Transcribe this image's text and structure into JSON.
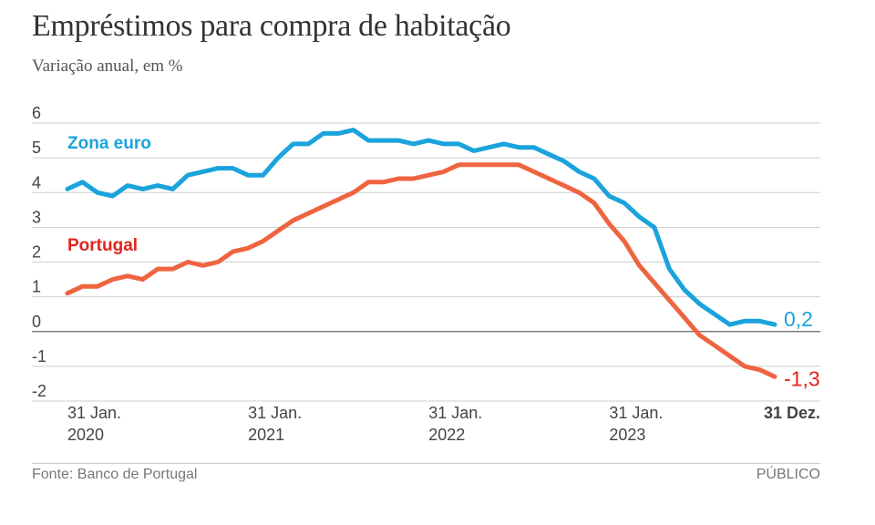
{
  "header": {
    "title": "Empréstimos para compra de habitação",
    "subtitle": "Variação anual, em %"
  },
  "footer": {
    "source": "Fonte: Banco de Portugal",
    "brand": "PÚBLICO"
  },
  "chart_data": {
    "type": "line",
    "title": "Empréstimos para compra de habitação",
    "subtitle": "Variação anual, em %",
    "ylim": [
      -2,
      6
    ],
    "yticks": [
      "6",
      "5",
      "4",
      "3",
      "2",
      "1",
      "0",
      "-1",
      "-2"
    ],
    "ytick_values": [
      6,
      5,
      4,
      3,
      2,
      1,
      0,
      -1,
      -2
    ],
    "grid": true,
    "xticks": [
      {
        "line1": "31 Jan.",
        "line2": "2020",
        "date": "2020-01-31"
      },
      {
        "line1": "31 Jan.",
        "line2": "2021",
        "date": "2021-01-31"
      },
      {
        "line1": "31 Jan.",
        "line2": "2022",
        "date": "2022-01-31"
      },
      {
        "line1": "31 Jan.",
        "line2": "2023",
        "date": "2023-01-31"
      },
      {
        "line1": "31 Dez.",
        "line2": "",
        "date": "2023-12-31"
      }
    ],
    "x": [
      "2020-01",
      "2020-02",
      "2020-03",
      "2020-04",
      "2020-05",
      "2020-06",
      "2020-07",
      "2020-08",
      "2020-09",
      "2020-10",
      "2020-11",
      "2020-12",
      "2021-01",
      "2021-02",
      "2021-03",
      "2021-04",
      "2021-05",
      "2021-06",
      "2021-07",
      "2021-08",
      "2021-09",
      "2021-10",
      "2021-11",
      "2021-12",
      "2022-01",
      "2022-02",
      "2022-03",
      "2022-04",
      "2022-05",
      "2022-06",
      "2022-07",
      "2022-08",
      "2022-09",
      "2022-10",
      "2022-11",
      "2022-12",
      "2023-01",
      "2023-02",
      "2023-03",
      "2023-04",
      "2023-05",
      "2023-06",
      "2023-07",
      "2023-08",
      "2023-09",
      "2023-10",
      "2023-11",
      "2023-12"
    ],
    "series": [
      {
        "name": "Zona euro",
        "color": "#1aa3dc",
        "end_label": "0,2",
        "values": [
          4.1,
          4.3,
          4.0,
          3.9,
          4.2,
          4.1,
          4.2,
          4.1,
          4.5,
          4.6,
          4.7,
          4.7,
          4.5,
          4.5,
          5.0,
          5.4,
          5.4,
          5.7,
          5.7,
          5.8,
          5.5,
          5.5,
          5.5,
          5.4,
          5.5,
          5.4,
          5.4,
          5.2,
          5.3,
          5.4,
          5.3,
          5.3,
          5.1,
          4.9,
          4.6,
          4.4,
          3.9,
          3.7,
          3.3,
          3.0,
          1.8,
          1.2,
          0.8,
          0.5,
          0.2,
          0.3,
          0.3,
          0.2
        ]
      },
      {
        "name": "Portugal",
        "color": "#ef6440",
        "label_color": "#e2231a",
        "end_label": "-1,3",
        "values": [
          1.1,
          1.3,
          1.3,
          1.5,
          1.6,
          1.5,
          1.8,
          1.8,
          2.0,
          1.9,
          2.0,
          2.3,
          2.4,
          2.6,
          2.9,
          3.2,
          3.4,
          3.6,
          3.8,
          4.0,
          4.3,
          4.3,
          4.4,
          4.4,
          4.5,
          4.6,
          4.8,
          4.8,
          4.8,
          4.8,
          4.8,
          4.6,
          4.4,
          4.2,
          4.0,
          3.7,
          3.1,
          2.6,
          1.9,
          1.4,
          0.9,
          0.4,
          -0.1,
          -0.4,
          -0.7,
          -1.0,
          -1.1,
          -1.3
        ]
      }
    ]
  }
}
